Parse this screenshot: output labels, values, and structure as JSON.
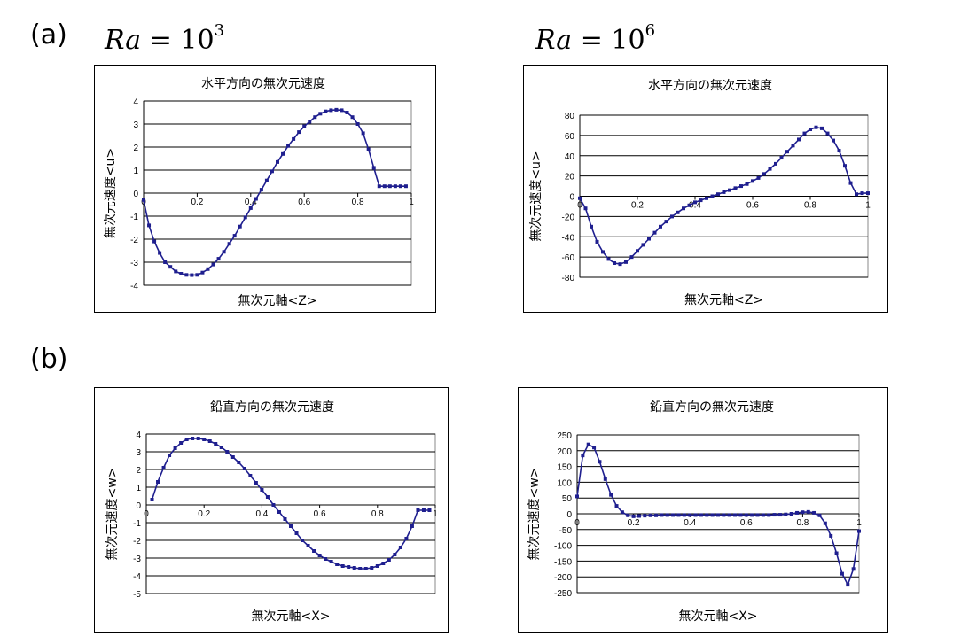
{
  "labels": {
    "a": "(a)",
    "b": "(b)"
  },
  "ra": [
    {
      "sym": "Ra",
      "eq": "=",
      "base": "10",
      "exp": "3"
    },
    {
      "sym": "Ra",
      "eq": "=",
      "base": "10",
      "exp": "6"
    }
  ],
  "chart_data": [
    {
      "type": "line",
      "title": "水平方向の無次元速度",
      "xlabel": "無次元軸<Z>",
      "ylabel": "無次元速度<u>",
      "ylim": [
        -4,
        4
      ],
      "yticks": [
        4,
        3,
        2,
        1,
        0,
        -1,
        -2,
        -3,
        -4
      ],
      "xlim": [
        0,
        1
      ],
      "xticks": [
        0,
        0.2,
        0.4,
        0.6,
        0.8,
        1
      ],
      "xticklabels": [
        "0",
        "0.2",
        "0.4",
        "0.6",
        "0.8",
        "1"
      ],
      "grid": true,
      "color": "#1f1f8f",
      "series": [
        {
          "x": [
            0,
            0.02,
            0.04,
            0.06,
            0.08,
            0.1,
            0.12,
            0.14,
            0.16,
            0.18,
            0.2,
            0.22,
            0.24,
            0.26,
            0.28,
            0.3,
            0.32,
            0.34,
            0.36,
            0.38,
            0.4,
            0.42,
            0.44,
            0.46,
            0.48,
            0.5,
            0.52,
            0.54,
            0.56,
            0.58,
            0.6,
            0.62,
            0.64,
            0.66,
            0.68,
            0.7,
            0.72,
            0.74,
            0.76,
            0.78,
            0.8,
            0.82,
            0.84,
            0.86,
            0.88,
            0.9,
            0.92,
            0.94,
            0.96,
            0.98
          ],
          "values": [
            -0.3,
            -1.4,
            -2.1,
            -2.6,
            -3.0,
            -3.2,
            -3.4,
            -3.5,
            -3.55,
            -3.56,
            -3.55,
            -3.45,
            -3.3,
            -3.1,
            -2.85,
            -2.55,
            -2.2,
            -1.85,
            -1.45,
            -1.05,
            -0.65,
            -0.25,
            0.15,
            0.55,
            0.95,
            1.35,
            1.7,
            2.05,
            2.35,
            2.65,
            2.9,
            3.1,
            3.3,
            3.45,
            3.55,
            3.6,
            3.62,
            3.6,
            3.5,
            3.3,
            3.0,
            2.6,
            1.9,
            1.1,
            0.3,
            0.3,
            0.3,
            0.3,
            0.3,
            0.3
          ]
        }
      ]
    },
    {
      "type": "line",
      "title": "水平方向の無次元速度",
      "xlabel": "無次元軸<Z>",
      "ylabel": "無次元速度<u>",
      "ylim": [
        -80,
        80
      ],
      "yticks": [
        80,
        60,
        40,
        20,
        0,
        -20,
        -40,
        -60,
        -80
      ],
      "xlim": [
        0,
        1
      ],
      "xticks": [
        0,
        0.2,
        0.4,
        0.6,
        0.8,
        1
      ],
      "xticklabels": [
        "0",
        "0.2",
        "0.4",
        "0.6",
        "0.8",
        "1"
      ],
      "grid": true,
      "color": "#1f1f8f",
      "series": [
        {
          "x": [
            0,
            0.02,
            0.04,
            0.06,
            0.08,
            0.1,
            0.12,
            0.14,
            0.16,
            0.18,
            0.2,
            0.22,
            0.24,
            0.26,
            0.28,
            0.3,
            0.32,
            0.34,
            0.36,
            0.38,
            0.4,
            0.42,
            0.44,
            0.46,
            0.48,
            0.5,
            0.52,
            0.54,
            0.56,
            0.58,
            0.6,
            0.62,
            0.64,
            0.66,
            0.68,
            0.7,
            0.72,
            0.74,
            0.76,
            0.78,
            0.8,
            0.82,
            0.84,
            0.86,
            0.88,
            0.9,
            0.92,
            0.94,
            0.96,
            0.98,
            1.0
          ],
          "values": [
            -2,
            -12,
            -30,
            -45,
            -55,
            -62,
            -66,
            -67,
            -65,
            -60,
            -54,
            -48,
            -42,
            -36,
            -30,
            -25,
            -20,
            -16,
            -12,
            -9,
            -6,
            -4,
            -2,
            0,
            2,
            4,
            6,
            8,
            10,
            12,
            15,
            18,
            22,
            27,
            32,
            38,
            44,
            50,
            56,
            62,
            66,
            68,
            67,
            62,
            55,
            45,
            30,
            13,
            2,
            3,
            3
          ]
        }
      ]
    },
    {
      "type": "line",
      "title": "鉛直方向の無次元速度",
      "xlabel": "無次元軸<X>",
      "ylabel": "無次元速度<w>",
      "ylim": [
        -5,
        4
      ],
      "yticks": [
        4,
        3,
        2,
        1,
        0,
        -1,
        -2,
        -3,
        -4,
        -5
      ],
      "xlim": [
        0,
        1
      ],
      "xticks": [
        0,
        0.2,
        0.4,
        0.6,
        0.8,
        1
      ],
      "xticklabels": [
        "0",
        "0.2",
        "0.4",
        "0.6",
        "0.8",
        "1"
      ],
      "grid": true,
      "color": "#1f1f8f",
      "series": [
        {
          "x": [
            0.02,
            0.04,
            0.06,
            0.08,
            0.1,
            0.12,
            0.14,
            0.16,
            0.18,
            0.2,
            0.22,
            0.24,
            0.26,
            0.28,
            0.3,
            0.32,
            0.34,
            0.36,
            0.38,
            0.4,
            0.42,
            0.44,
            0.46,
            0.48,
            0.5,
            0.52,
            0.54,
            0.56,
            0.58,
            0.6,
            0.62,
            0.64,
            0.66,
            0.68,
            0.7,
            0.72,
            0.74,
            0.76,
            0.78,
            0.8,
            0.82,
            0.84,
            0.86,
            0.88,
            0.9,
            0.92,
            0.94,
            0.96,
            0.98
          ],
          "values": [
            0.3,
            1.3,
            2.1,
            2.8,
            3.2,
            3.5,
            3.7,
            3.75,
            3.75,
            3.7,
            3.6,
            3.45,
            3.25,
            3.0,
            2.7,
            2.4,
            2.05,
            1.65,
            1.25,
            0.85,
            0.45,
            0.0,
            -0.4,
            -0.8,
            -1.2,
            -1.6,
            -2.0,
            -2.3,
            -2.6,
            -2.85,
            -3.05,
            -3.2,
            -3.35,
            -3.45,
            -3.5,
            -3.55,
            -3.6,
            -3.6,
            -3.55,
            -3.45,
            -3.3,
            -3.1,
            -2.8,
            -2.4,
            -1.9,
            -1.2,
            -0.3,
            -0.3,
            -0.3
          ]
        }
      ]
    },
    {
      "type": "line",
      "title": "鉛直方向の無次元速度",
      "xlabel": "無次元軸<X>",
      "ylabel": "無次元速度<w>",
      "ylim": [
        -250,
        250
      ],
      "yticks": [
        250,
        200,
        150,
        100,
        50,
        0,
        -50,
        -100,
        -150,
        -200,
        -250
      ],
      "xlim": [
        0,
        1
      ],
      "xticks": [
        0,
        0.2,
        0.4,
        0.6,
        0.8,
        1
      ],
      "xticklabels": [
        "0",
        "0.2",
        "0.4",
        "0.6",
        "0.8",
        "1"
      ],
      "grid": true,
      "color": "#1f1f8f",
      "series": [
        {
          "x": [
            0,
            0.02,
            0.04,
            0.06,
            0.08,
            0.1,
            0.12,
            0.14,
            0.16,
            0.18,
            0.2,
            0.22,
            0.24,
            0.26,
            0.28,
            0.3,
            0.32,
            0.34,
            0.36,
            0.38,
            0.4,
            0.42,
            0.44,
            0.46,
            0.48,
            0.5,
            0.52,
            0.54,
            0.56,
            0.58,
            0.6,
            0.62,
            0.64,
            0.66,
            0.68,
            0.7,
            0.72,
            0.74,
            0.76,
            0.78,
            0.8,
            0.82,
            0.84,
            0.86,
            0.88,
            0.9,
            0.92,
            0.94,
            0.96,
            0.98,
            1.0
          ],
          "values": [
            55,
            185,
            220,
            210,
            165,
            110,
            60,
            25,
            5,
            -5,
            -8,
            -7,
            -6,
            -5,
            -5,
            -4,
            -4,
            -4,
            -4,
            -4,
            -4,
            -4,
            -4,
            -4,
            -4,
            -4,
            -4,
            -4,
            -4,
            -4,
            -4,
            -4,
            -4,
            -4,
            -4,
            -3,
            -3,
            -2,
            0,
            3,
            5,
            6,
            3,
            -5,
            -30,
            -70,
            -125,
            -190,
            -225,
            -175,
            -55
          ]
        }
      ]
    }
  ]
}
